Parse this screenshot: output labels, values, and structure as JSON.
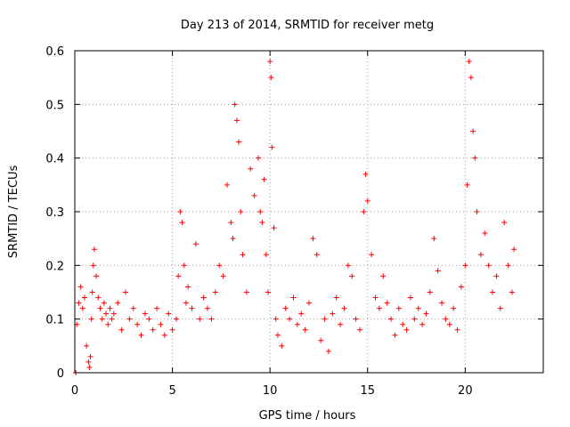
{
  "chart_data": {
    "type": "scatter",
    "title": "Day 213 of 2014, SRMTID for receiver metg",
    "xlabel": "GPS time / hours",
    "ylabel": "SRMTID / TECUs",
    "xlim": [
      0,
      24
    ],
    "ylim": [
      0,
      0.6
    ],
    "xticks": [
      0,
      5,
      10,
      15,
      20
    ],
    "xtick_labels": [
      "0",
      "5",
      "10",
      "15",
      "20"
    ],
    "yticks": [
      0,
      0.1,
      0.2,
      0.3,
      0.4,
      0.5,
      0.6
    ],
    "ytick_labels": [
      "0",
      "0.1",
      "0.2",
      "0.3",
      "0.4",
      "0.5",
      "0.6"
    ],
    "grid": true,
    "marker": "+",
    "series": [
      {
        "name": "SRMTID",
        "color": "#ff0000",
        "x": [
          0.05,
          0.1,
          0.2,
          0.3,
          0.4,
          0.5,
          0.6,
          0.7,
          0.75,
          0.8,
          0.85,
          0.9,
          0.95,
          1.0,
          1.1,
          1.2,
          1.3,
          1.4,
          1.5,
          1.6,
          1.7,
          1.8,
          1.9,
          2.0,
          2.2,
          2.4,
          2.6,
          2.8,
          3.0,
          3.2,
          3.4,
          3.6,
          3.8,
          4.0,
          4.2,
          4.4,
          4.6,
          4.8,
          5.0,
          5.2,
          5.3,
          5.4,
          5.5,
          5.6,
          5.7,
          5.8,
          6.0,
          6.2,
          6.4,
          6.6,
          6.8,
          7.0,
          7.2,
          7.4,
          7.6,
          7.8,
          8.0,
          8.1,
          8.2,
          8.3,
          8.4,
          8.5,
          8.6,
          8.8,
          9.0,
          9.2,
          9.4,
          9.5,
          9.6,
          9.7,
          9.8,
          9.9,
          10.0,
          10.05,
          10.1,
          10.2,
          10.3,
          10.4,
          10.6,
          10.8,
          11.0,
          11.2,
          11.4,
          11.6,
          11.8,
          12.0,
          12.2,
          12.4,
          12.6,
          12.8,
          13.0,
          13.2,
          13.4,
          13.6,
          13.8,
          14.0,
          14.2,
          14.4,
          14.6,
          14.8,
          14.9,
          15.0,
          15.2,
          15.4,
          15.6,
          15.8,
          16.0,
          16.2,
          16.4,
          16.6,
          16.8,
          17.0,
          17.2,
          17.4,
          17.6,
          17.8,
          18.0,
          18.2,
          18.4,
          18.6,
          18.8,
          19.0,
          19.2,
          19.4,
          19.6,
          19.8,
          20.0,
          20.1,
          20.2,
          20.3,
          20.4,
          20.5,
          20.6,
          20.8,
          21.0,
          21.2,
          21.4,
          21.6,
          21.8,
          22.0,
          22.2,
          22.4,
          22.5
        ],
        "y": [
          0.0,
          0.09,
          0.13,
          0.16,
          0.12,
          0.14,
          0.05,
          0.02,
          0.01,
          0.03,
          0.1,
          0.15,
          0.2,
          0.23,
          0.18,
          0.14,
          0.12,
          0.1,
          0.13,
          0.11,
          0.09,
          0.12,
          0.1,
          0.11,
          0.13,
          0.08,
          0.15,
          0.1,
          0.12,
          0.09,
          0.07,
          0.11,
          0.1,
          0.08,
          0.12,
          0.09,
          0.07,
          0.11,
          0.08,
          0.1,
          0.18,
          0.3,
          0.28,
          0.2,
          0.13,
          0.16,
          0.12,
          0.24,
          0.1,
          0.14,
          0.12,
          0.1,
          0.15,
          0.2,
          0.18,
          0.35,
          0.28,
          0.25,
          0.5,
          0.47,
          0.43,
          0.3,
          0.22,
          0.15,
          0.38,
          0.33,
          0.4,
          0.3,
          0.28,
          0.36,
          0.22,
          0.15,
          0.58,
          0.55,
          0.42,
          0.27,
          0.1,
          0.07,
          0.05,
          0.12,
          0.1,
          0.14,
          0.09,
          0.11,
          0.08,
          0.13,
          0.25,
          0.22,
          0.06,
          0.1,
          0.04,
          0.11,
          0.14,
          0.09,
          0.12,
          0.2,
          0.18,
          0.1,
          0.08,
          0.3,
          0.37,
          0.32,
          0.22,
          0.14,
          0.12,
          0.18,
          0.13,
          0.1,
          0.07,
          0.12,
          0.09,
          0.08,
          0.14,
          0.1,
          0.12,
          0.09,
          0.11,
          0.15,
          0.25,
          0.19,
          0.13,
          0.1,
          0.09,
          0.12,
          0.08,
          0.16,
          0.2,
          0.35,
          0.58,
          0.55,
          0.45,
          0.4,
          0.3,
          0.22,
          0.26,
          0.2,
          0.15,
          0.18,
          0.12,
          0.28,
          0.2,
          0.15,
          0.23
        ]
      }
    ]
  }
}
